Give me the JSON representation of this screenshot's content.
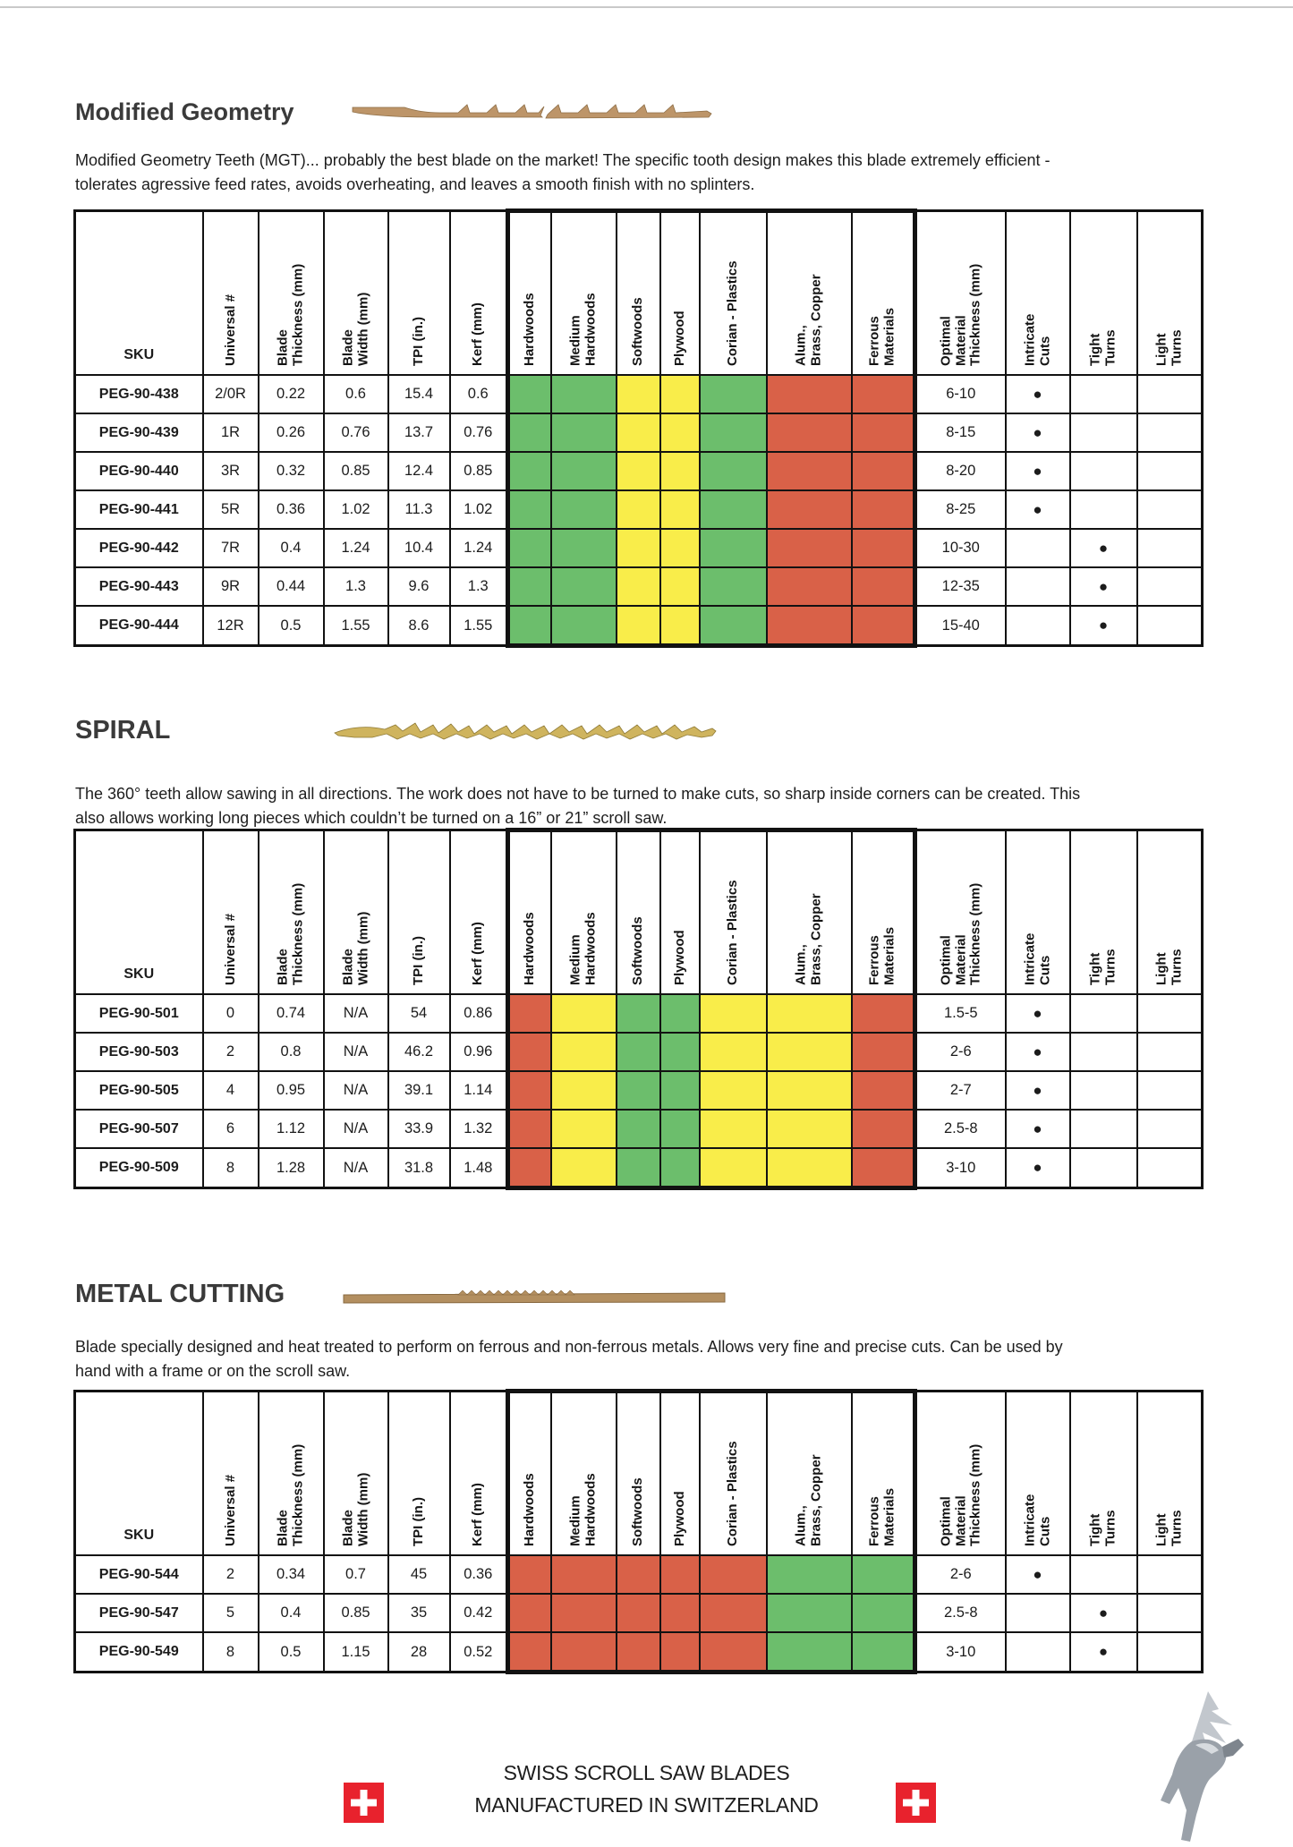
{
  "table_column_headers": [
    "SKU",
    "Universal #",
    "Blade\nThickness (mm)",
    "Blade\nWidth (mm)",
    "TPI (in.)",
    "Kerf (mm)",
    "Hardwoods",
    "Medium\nHardwoods",
    "Softwoods",
    "Plywood",
    "Corian - Plastics",
    "Alum.,\nBrass, Copper",
    "Ferrous\nMaterials",
    "Optimal\nMaterial\nThickness (mm)",
    "Intricate\nCuts",
    "Tight\nTurns",
    "Light\nTurns"
  ],
  "suitability_colors": {
    "green": "#6cbe6c",
    "yellow": "#f9ed4a",
    "red": "#d96148"
  },
  "bullet_marker": "●",
  "sections": [
    {
      "title": "Modified Geometry",
      "description": "Modified Geometry Teeth (MGT)... probably the best blade on the market! The specific tooth design makes this blade extremely efficient - tolerates agressive feed rates, avoids overheating, and leaves a smooth finish with no splinters.",
      "table": {
        "material_suitability": [
          "green",
          "green",
          "yellow",
          "yellow",
          "green",
          "red",
          "red"
        ],
        "rows": [
          {
            "sku": "PEG-90-438",
            "universal": "2/0R",
            "blade_thickness_mm": "0.22",
            "blade_width_mm": "0.6",
            "tpi_in": "15.4",
            "kerf_mm": "0.6",
            "optimal_material_thickness_mm": "6-10",
            "intricate_cuts": true,
            "tight_turns": false,
            "light_turns": false
          },
          {
            "sku": "PEG-90-439",
            "universal": "1R",
            "blade_thickness_mm": "0.26",
            "blade_width_mm": "0.76",
            "tpi_in": "13.7",
            "kerf_mm": "0.76",
            "optimal_material_thickness_mm": "8-15",
            "intricate_cuts": true,
            "tight_turns": false,
            "light_turns": false
          },
          {
            "sku": "PEG-90-440",
            "universal": "3R",
            "blade_thickness_mm": "0.32",
            "blade_width_mm": "0.85",
            "tpi_in": "12.4",
            "kerf_mm": "0.85",
            "optimal_material_thickness_mm": "8-20",
            "intricate_cuts": true,
            "tight_turns": false,
            "light_turns": false
          },
          {
            "sku": "PEG-90-441",
            "universal": "5R",
            "blade_thickness_mm": "0.36",
            "blade_width_mm": "1.02",
            "tpi_in": "11.3",
            "kerf_mm": "1.02",
            "optimal_material_thickness_mm": "8-25",
            "intricate_cuts": true,
            "tight_turns": false,
            "light_turns": false
          },
          {
            "sku": "PEG-90-442",
            "universal": "7R",
            "blade_thickness_mm": "0.4",
            "blade_width_mm": "1.24",
            "tpi_in": "10.4",
            "kerf_mm": "1.24",
            "optimal_material_thickness_mm": "10-30",
            "intricate_cuts": false,
            "tight_turns": true,
            "light_turns": false
          },
          {
            "sku": "PEG-90-443",
            "universal": "9R",
            "blade_thickness_mm": "0.44",
            "blade_width_mm": "1.3",
            "tpi_in": "9.6",
            "kerf_mm": "1.3",
            "optimal_material_thickness_mm": "12-35",
            "intricate_cuts": false,
            "tight_turns": true,
            "light_turns": false
          },
          {
            "sku": "PEG-90-444",
            "universal": "12R",
            "blade_thickness_mm": "0.5",
            "blade_width_mm": "1.55",
            "tpi_in": "8.6",
            "kerf_mm": "1.55",
            "optimal_material_thickness_mm": "15-40",
            "intricate_cuts": false,
            "tight_turns": true,
            "light_turns": false
          }
        ]
      }
    },
    {
      "title": "SPIRAL",
      "description": "The 360° teeth allow sawing in all directions. The work does not have to be turned to make cuts, so sharp inside corners can be created. This also allows working long pieces which couldn’t be turned on a 16” or 21” scroll saw.",
      "table": {
        "material_suitability": [
          "red",
          "yellow",
          "green",
          "green",
          "yellow",
          "yellow",
          "red"
        ],
        "rows": [
          {
            "sku": "PEG-90-501",
            "universal": "0",
            "blade_thickness_mm": "0.74",
            "blade_width_mm": "N/A",
            "tpi_in": "54",
            "kerf_mm": "0.86",
            "optimal_material_thickness_mm": "1.5-5",
            "intricate_cuts": true,
            "tight_turns": false,
            "light_turns": false
          },
          {
            "sku": "PEG-90-503",
            "universal": "2",
            "blade_thickness_mm": "0.8",
            "blade_width_mm": "N/A",
            "tpi_in": "46.2",
            "kerf_mm": "0.96",
            "optimal_material_thickness_mm": "2-6",
            "intricate_cuts": true,
            "tight_turns": false,
            "light_turns": false
          },
          {
            "sku": "PEG-90-505",
            "universal": "4",
            "blade_thickness_mm": "0.95",
            "blade_width_mm": "N/A",
            "tpi_in": "39.1",
            "kerf_mm": "1.14",
            "optimal_material_thickness_mm": "2-7",
            "intricate_cuts": true,
            "tight_turns": false,
            "light_turns": false
          },
          {
            "sku": "PEG-90-507",
            "universal": "6",
            "blade_thickness_mm": "1.12",
            "blade_width_mm": "N/A",
            "tpi_in": "33.9",
            "kerf_mm": "1.32",
            "optimal_material_thickness_mm": "2.5-8",
            "intricate_cuts": true,
            "tight_turns": false,
            "light_turns": false
          },
          {
            "sku": "PEG-90-509",
            "universal": "8",
            "blade_thickness_mm": "1.28",
            "blade_width_mm": "N/A",
            "tpi_in": "31.8",
            "kerf_mm": "1.48",
            "optimal_material_thickness_mm": "3-10",
            "intricate_cuts": true,
            "tight_turns": false,
            "light_turns": false
          }
        ]
      }
    },
    {
      "title": "METAL CUTTING",
      "description": "Blade specially designed and heat treated to perform on ferrous and non-ferrous metals. Allows very fine and precise cuts. Can be used by hand with a frame or on the scroll saw.",
      "table": {
        "material_suitability": [
          "red",
          "red",
          "red",
          "red",
          "red",
          "green",
          "green"
        ],
        "rows": [
          {
            "sku": "PEG-90-544",
            "universal": "2",
            "blade_thickness_mm": "0.34",
            "blade_width_mm": "0.7",
            "tpi_in": "45",
            "kerf_mm": "0.36",
            "optimal_material_thickness_mm": "2-6",
            "intricate_cuts": true,
            "tight_turns": false,
            "light_turns": false
          },
          {
            "sku": "PEG-90-547",
            "universal": "5",
            "blade_thickness_mm": "0.4",
            "blade_width_mm": "0.85",
            "tpi_in": "35",
            "kerf_mm": "0.42",
            "optimal_material_thickness_mm": "2.5-8",
            "intricate_cuts": false,
            "tight_turns": true,
            "light_turns": false
          },
          {
            "sku": "PEG-90-549",
            "universal": "8",
            "blade_thickness_mm": "0.5",
            "blade_width_mm": "1.15",
            "tpi_in": "28",
            "kerf_mm": "0.52",
            "optimal_material_thickness_mm": "3-10",
            "intricate_cuts": false,
            "tight_turns": true,
            "light_turns": false
          }
        ]
      }
    }
  ],
  "footer": {
    "line1": "SWISS SCROLL SAW BLADES",
    "line2": "MANUFACTURED IN SWITZERLAND"
  }
}
